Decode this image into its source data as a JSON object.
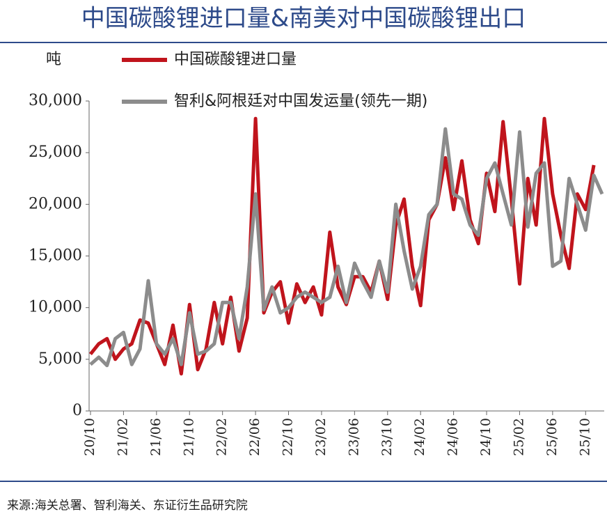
{
  "chart_data": {
    "type": "line",
    "title": "中国碳酸锂进口量&南美对中国碳酸锂出口",
    "y_label": "吨",
    "source": "来源:海关总署、智利海关、东证衍生品研究院",
    "categories": [
      "20/10",
      null,
      null,
      null,
      "21/02",
      null,
      null,
      null,
      "21/06",
      null,
      null,
      null,
      "21/10",
      null,
      null,
      null,
      "22/02",
      null,
      null,
      null,
      "22/06",
      null,
      null,
      null,
      "22/10",
      null,
      null,
      null,
      "23/02",
      null,
      null,
      null,
      "23/06",
      null,
      null,
      null,
      "23/10",
      null,
      null,
      null,
      "24/02",
      null,
      null,
      null,
      "24/06",
      null,
      null,
      null,
      "24/10",
      null,
      null,
      null,
      "25/02",
      null,
      null,
      null,
      "25/06",
      null,
      null,
      null,
      "25/10",
      null,
      null
    ],
    "series": [
      {
        "name": "中国碳酸锂进口量",
        "color": "#c0141c",
        "values": [
          5500,
          6500,
          7000,
          5000,
          6000,
          6500,
          8800,
          8500,
          6500,
          4500,
          8300,
          3600,
          10300,
          4000,
          6000,
          10500,
          6500,
          11000,
          5800,
          9000,
          28300,
          9500,
          11500,
          12500,
          8500,
          12300,
          10500,
          12000,
          9300,
          17300,
          12000,
          10300,
          13000,
          13000,
          11500,
          14500,
          10800,
          18000,
          20500,
          14000,
          10200,
          18500,
          20000,
          24500,
          19500,
          24200,
          18500,
          16200,
          23000,
          19300,
          28000,
          20500,
          12300,
          22500,
          18000,
          28300,
          21000,
          17000,
          13800,
          21000,
          19500,
          23800,
          null
        ]
      },
      {
        "name": "智利&阿根廷对中国发运量(领先一期)",
        "color": "#8c8c8c",
        "values": [
          4500,
          5200,
          4400,
          7000,
          7600,
          4500,
          6000,
          12600,
          6500,
          5500,
          7000,
          4500,
          9500,
          5500,
          5800,
          6500,
          10500,
          10500,
          7000,
          12000,
          21000,
          9800,
          12000,
          9500,
          10000,
          11000,
          11500,
          11000,
          10500,
          11000,
          14000,
          10500,
          14300,
          12500,
          11000,
          14500,
          11500,
          20000,
          15500,
          11800,
          14000,
          19000,
          20000,
          27300,
          21000,
          20500,
          18000,
          17000,
          22500,
          24000,
          21000,
          18000,
          27000,
          17800,
          23000,
          24000,
          14000,
          14500,
          22500,
          20000,
          17500,
          22800,
          21000
        ]
      }
    ],
    "ylim": [
      0,
      30000
    ],
    "yticks": [
      0,
      {
        "value": 5000,
        "label": "5,000"
      },
      {
        "value": 10000,
        "label": "10,000"
      },
      {
        "value": 15000,
        "label": "15,000"
      },
      {
        "value": 20000,
        "label": "20,000"
      },
      {
        "value": 25000,
        "label": "25,000"
      },
      {
        "value": 30000,
        "label": "30,000"
      }
    ],
    "grid": false
  }
}
